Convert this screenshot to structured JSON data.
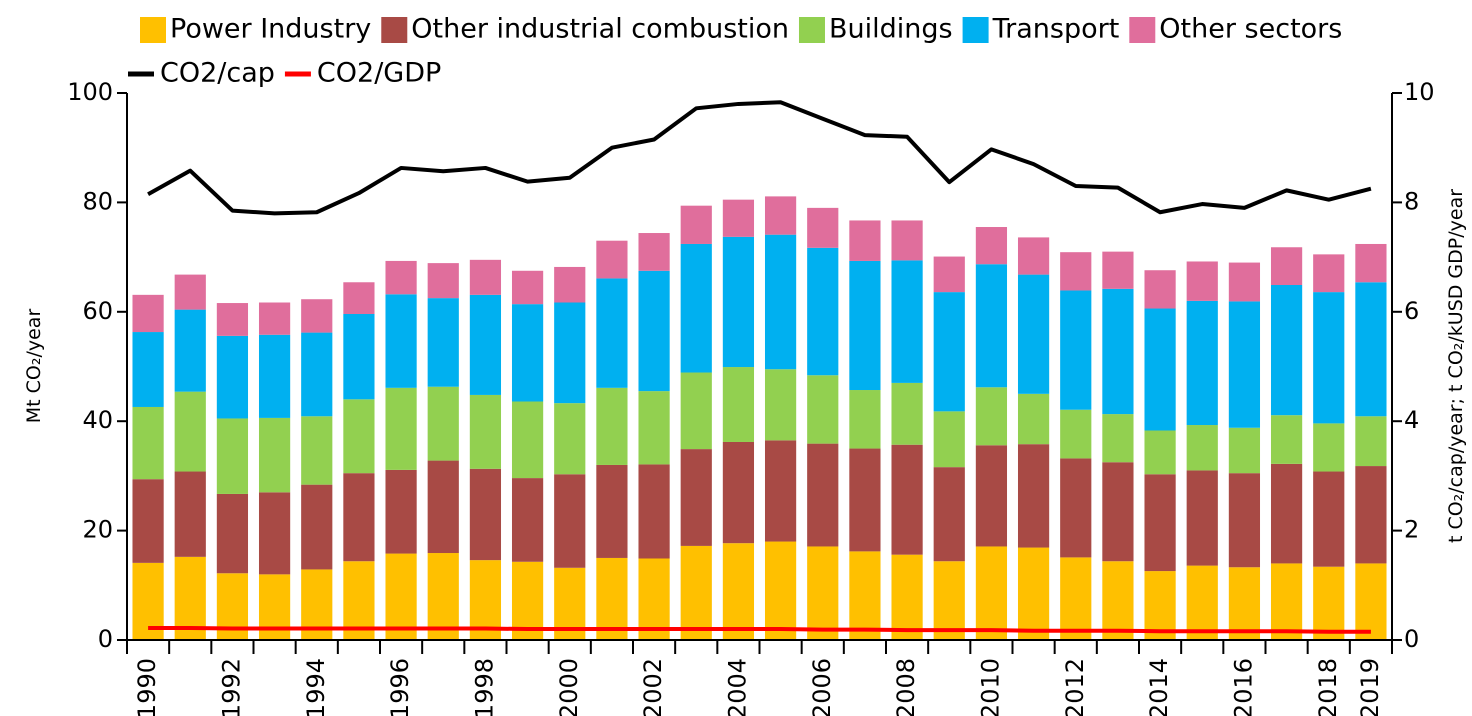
{
  "chart_data": {
    "type": "stacked-bar-line",
    "y_label": "Mt CO₂/year",
    "y2_label": "t CO₂/cap/year; t CO₂/kUSD GDP/year",
    "categories": [
      "1990",
      null,
      "1992",
      null,
      "1994",
      null,
      "1996",
      null,
      "1998",
      null,
      "2000",
      null,
      "2002",
      null,
      "2004",
      null,
      "2006",
      null,
      "2008",
      null,
      "2010",
      null,
      "2012",
      null,
      "2014",
      null,
      "2016",
      null,
      "2018",
      "2019"
    ],
    "ylim": [
      0,
      100
    ],
    "yticks": [
      0,
      20,
      40,
      60,
      80,
      100
    ],
    "y2lim": [
      0,
      10
    ],
    "y2ticks": [
      0,
      2,
      4,
      6,
      8,
      10
    ],
    "legend": "top",
    "series": [
      {
        "name": "Power Industry",
        "color": "#ffc000",
        "kind": "bar",
        "values": [
          14.1,
          15.2,
          12.2,
          12.0,
          12.9,
          14.4,
          15.8,
          15.9,
          14.6,
          14.3,
          13.2,
          15.0,
          14.9,
          17.2,
          17.7,
          18.0,
          17.1,
          16.2,
          15.6,
          14.4,
          17.1,
          16.9,
          15.1,
          14.4,
          12.6,
          13.6,
          13.3,
          14.0,
          13.4,
          14.0
        ]
      },
      {
        "name": "Other industrial combustion",
        "color": "#a84a45",
        "kind": "bar",
        "values": [
          15.3,
          15.6,
          14.5,
          15.0,
          15.5,
          16.1,
          15.3,
          16.9,
          16.7,
          15.3,
          17.1,
          17.0,
          17.2,
          17.7,
          18.5,
          18.5,
          18.8,
          18.8,
          20.1,
          17.2,
          18.5,
          18.9,
          18.1,
          18.1,
          17.7,
          17.4,
          17.2,
          18.2,
          17.4,
          17.8
        ]
      },
      {
        "name": "Buildings",
        "color": "#92d050",
        "kind": "bar",
        "values": [
          13.2,
          14.6,
          13.8,
          13.6,
          12.5,
          13.5,
          15.0,
          13.5,
          13.5,
          14.0,
          13.0,
          14.1,
          13.4,
          14.0,
          13.7,
          13.0,
          12.5,
          10.7,
          11.3,
          10.2,
          10.6,
          9.2,
          8.9,
          8.8,
          8.0,
          8.3,
          8.3,
          8.9,
          8.8,
          9.1
        ]
      },
      {
        "name": "Transport",
        "color": "#00b0f0",
        "kind": "bar",
        "values": [
          13.7,
          15.0,
          15.1,
          15.2,
          15.3,
          15.6,
          17.1,
          16.2,
          18.3,
          17.8,
          18.4,
          20.0,
          22.0,
          23.5,
          23.8,
          24.6,
          23.3,
          23.6,
          22.4,
          21.8,
          22.5,
          21.8,
          21.8,
          22.9,
          22.3,
          22.7,
          23.1,
          23.8,
          24.0,
          24.5
        ]
      },
      {
        "name": "Other sectors",
        "color": "#e06e9c",
        "kind": "bar",
        "values": [
          6.8,
          6.4,
          6.0,
          5.9,
          6.1,
          5.8,
          6.1,
          6.4,
          6.4,
          6.1,
          6.5,
          6.9,
          6.9,
          7.0,
          6.8,
          7.0,
          7.3,
          7.4,
          7.3,
          6.5,
          6.8,
          6.8,
          7.0,
          6.8,
          7.0,
          7.2,
          7.1,
          6.9,
          6.9,
          7.0
        ]
      },
      {
        "name": "CO2/cap",
        "color": "#000000",
        "kind": "line",
        "axis": "y2",
        "values": [
          8.15,
          8.58,
          7.85,
          7.8,
          7.82,
          8.17,
          8.63,
          8.57,
          8.63,
          8.38,
          8.45,
          9.0,
          9.15,
          9.72,
          9.8,
          9.83,
          9.53,
          9.23,
          9.2,
          8.37,
          8.97,
          8.7,
          8.3,
          8.27,
          7.82,
          7.97,
          7.9,
          8.22,
          8.05,
          8.25
        ]
      },
      {
        "name": "CO2/GDP",
        "color": "#ff0000",
        "kind": "line",
        "axis": "y2",
        "values": [
          0.22,
          0.22,
          0.21,
          0.21,
          0.21,
          0.21,
          0.21,
          0.21,
          0.21,
          0.2,
          0.2,
          0.2,
          0.2,
          0.2,
          0.2,
          0.2,
          0.19,
          0.19,
          0.18,
          0.18,
          0.18,
          0.17,
          0.17,
          0.17,
          0.16,
          0.16,
          0.16,
          0.16,
          0.15,
          0.15
        ]
      }
    ]
  }
}
